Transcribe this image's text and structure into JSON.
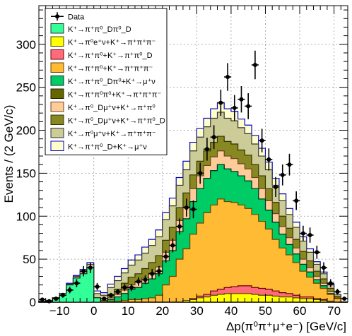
{
  "chart_data": {
    "type": "histogram-stacked",
    "xlabel": "Δp(π⁰π⁺μ⁺e⁻) [GeV/c]",
    "ylabel": "Events / (2 GeV/c)",
    "xlim": [
      -16,
      74
    ],
    "ylim": [
      0,
      345
    ],
    "xticks": [
      -10,
      0,
      10,
      20,
      30,
      40,
      50,
      60,
      70
    ],
    "yticks": [
      0,
      50,
      100,
      150,
      200,
      250,
      300
    ],
    "grid": true,
    "legend_position": "top-left",
    "bin_edges": [
      -16,
      -14,
      -12,
      -10,
      -8,
      -6,
      -4,
      -2,
      0,
      2,
      4,
      6,
      8,
      10,
      12,
      14,
      16,
      18,
      20,
      22,
      24,
      26,
      28,
      30,
      32,
      34,
      36,
      38,
      40,
      42,
      44,
      46,
      48,
      50,
      52,
      54,
      56,
      58,
      60,
      62,
      64,
      66,
      68,
      70,
      72,
      74
    ],
    "series": [
      {
        "name": "K⁺→π⁺π⁰_Dπ⁰_D",
        "color": "#33ff99",
        "edge": "#333333",
        "values": [
          1,
          2,
          5,
          10,
          20,
          28,
          33,
          40,
          5,
          0,
          0,
          0,
          0,
          0,
          0,
          0,
          0,
          0,
          0,
          0,
          0,
          0,
          0,
          0,
          0,
          0,
          0,
          0,
          0,
          0,
          0,
          0,
          0,
          0,
          0,
          0,
          0,
          0,
          0,
          0,
          0,
          0,
          0,
          0,
          0
        ]
      },
      {
        "name": "K⁺→π⁰e⁺ν+K⁺→π⁺π⁺π⁻",
        "color": "#ffff00",
        "edge": "#444400",
        "values": [
          0,
          0,
          0,
          0,
          0,
          0,
          0,
          0,
          0,
          0,
          0,
          0,
          0,
          0,
          0,
          0,
          0,
          0,
          0,
          0,
          0,
          2,
          3,
          5,
          6,
          8,
          9,
          10,
          10,
          10,
          10,
          9,
          8,
          8,
          7,
          6,
          6,
          5,
          4,
          4,
          3,
          2,
          1,
          0,
          0
        ]
      },
      {
        "name": "K⁺→π⁺π⁰+K⁺→π⁺π⁰_D",
        "color": "#ff6b7b",
        "edge": "#660000",
        "values": [
          0,
          0,
          0,
          0,
          0,
          0,
          0,
          0,
          0,
          0,
          0,
          0,
          0,
          0,
          0,
          0,
          0,
          0,
          0,
          0,
          0,
          0,
          1,
          2,
          3,
          5,
          6,
          7,
          8,
          9,
          9,
          8,
          8,
          7,
          6,
          5,
          4,
          3,
          2,
          2,
          1,
          1,
          0,
          0,
          0
        ]
      },
      {
        "name": "K⁺→π⁺π⁰+K⁺→π⁺π⁺π⁻",
        "color": "#ffbb33",
        "edge": "#664400",
        "values": [
          0,
          0,
          0,
          0,
          0,
          0,
          0,
          0,
          0,
          0,
          1,
          1,
          2,
          3,
          3,
          4,
          5,
          8,
          20,
          30,
          50,
          60,
          75,
          85,
          95,
          100,
          105,
          100,
          98,
          94,
          90,
          85,
          78,
          70,
          60,
          52,
          45,
          38,
          30,
          23,
          18,
          13,
          8,
          4,
          0
        ]
      },
      {
        "name": "K⁺→π⁺π⁰_Dπ⁰+K⁺→μ⁺ν",
        "color": "#00cc66",
        "edge": "#003322",
        "values": [
          0,
          0,
          0,
          0,
          0,
          0,
          0,
          0,
          0,
          0,
          2,
          5,
          8,
          12,
          14,
          18,
          22,
          25,
          28,
          30,
          32,
          35,
          38,
          40,
          40,
          40,
          40,
          38,
          36,
          34,
          32,
          30,
          26,
          22,
          20,
          16,
          12,
          10,
          8,
          6,
          4,
          3,
          1,
          0,
          0
        ]
      },
      {
        "name": "K⁺→π⁺π⁰π⁰+K⁺→π⁺π⁺π⁻",
        "color": "#666600",
        "edge": "#222200",
        "values": [
          0,
          0,
          0,
          0,
          0,
          0,
          0,
          0,
          0,
          0,
          0,
          0,
          0,
          0,
          0,
          0,
          0,
          0,
          0,
          0,
          0,
          0,
          0,
          0,
          0,
          0,
          0,
          0,
          0,
          0,
          0,
          0,
          0,
          0,
          0,
          0,
          0,
          0,
          0,
          0,
          0,
          0,
          0,
          0,
          0
        ]
      },
      {
        "name": "K⁺→π⁰_Dμ⁺ν+K⁺→π⁺π⁰",
        "color": "#ffcc99",
        "edge": "#664422",
        "values": [
          0,
          0,
          0,
          0,
          0,
          0,
          0,
          0,
          0,
          0,
          2,
          3,
          4,
          5,
          6,
          6,
          7,
          8,
          10,
          12,
          13,
          14,
          15,
          15,
          15,
          16,
          16,
          15,
          15,
          14,
          14,
          13,
          12,
          11,
          10,
          9,
          8,
          7,
          6,
          5,
          4,
          3,
          2,
          1,
          0
        ]
      },
      {
        "name": "K⁺→π⁰_Dμ⁺ν+K⁺→π⁺π⁰_D",
        "color": "#888822",
        "edge": "#333300",
        "values": [
          0,
          0,
          0,
          0,
          0,
          0,
          0,
          0,
          0,
          2,
          4,
          6,
          8,
          9,
          10,
          11,
          12,
          13,
          14,
          15,
          15,
          16,
          16,
          17,
          17,
          17,
          17,
          17,
          17,
          16,
          16,
          15,
          15,
          14,
          13,
          12,
          11,
          10,
          9,
          8,
          6,
          5,
          4,
          2,
          0
        ]
      },
      {
        "name": "K⁺→π⁰μ⁺ν+K⁺→π⁺π⁺π⁻",
        "color": "#cccc99",
        "edge": "#333333",
        "values": [
          0,
          0,
          0,
          0,
          1,
          2,
          3,
          4,
          5,
          6,
          8,
          10,
          12,
          14,
          16,
          18,
          20,
          22,
          24,
          25,
          26,
          27,
          28,
          28,
          28,
          28,
          28,
          27,
          27,
          26,
          25,
          24,
          23,
          22,
          20,
          18,
          16,
          14,
          12,
          10,
          8,
          6,
          4,
          2,
          0
        ]
      },
      {
        "name": "K⁺→π⁺π⁰_D+K⁺→μ⁺ν",
        "color": "#ffffcc",
        "edge": "#0000cc",
        "values": [
          0,
          0,
          0,
          0,
          1,
          1,
          2,
          2,
          3,
          3,
          4,
          5,
          5,
          6,
          6,
          7,
          7,
          8,
          8,
          9,
          9,
          10,
          10,
          10,
          10,
          11,
          11,
          11,
          11,
          10,
          10,
          10,
          9,
          9,
          8,
          8,
          7,
          6,
          5,
          4,
          3,
          2,
          1,
          0,
          0
        ]
      }
    ],
    "data": {
      "name": "Data",
      "x": [
        -15,
        -13,
        -11,
        -9,
        -7,
        -5,
        -3,
        -1,
        1,
        3,
        5,
        7,
        9,
        11,
        13,
        15,
        17,
        19,
        21,
        23,
        25,
        27,
        29,
        31,
        33,
        35,
        37,
        39,
        41,
        43,
        45,
        47,
        49,
        51,
        53,
        55,
        57,
        59,
        61,
        63,
        65,
        67,
        69,
        71,
        73
      ],
      "y": [
        3,
        1,
        4,
        8,
        14,
        22,
        36,
        40,
        18,
        4,
        8,
        12,
        17,
        17,
        24,
        26,
        33,
        36,
        53,
        66,
        88,
        110,
        108,
        150,
        178,
        192,
        232,
        262,
        226,
        236,
        228,
        276,
        188,
        166,
        134,
        148,
        160,
        118,
        80,
        78,
        58,
        40,
        22,
        12,
        4
      ]
    }
  }
}
